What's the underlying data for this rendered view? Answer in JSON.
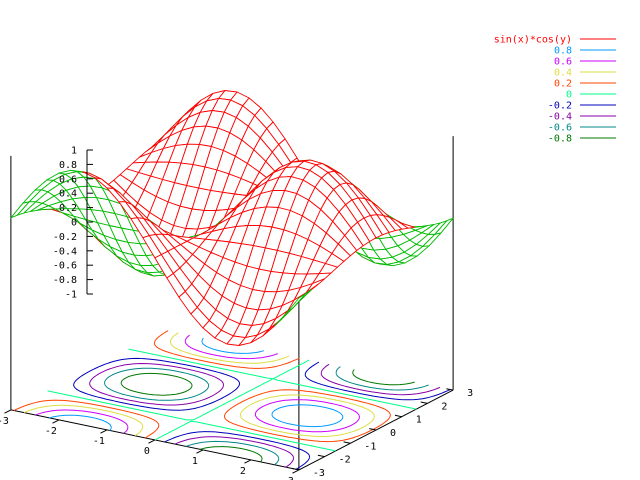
{
  "chart_data": {
    "type": "surface",
    "function": "sin(x)*cos(y)",
    "x_range": [
      -3,
      3
    ],
    "y_range": [
      -3,
      3
    ],
    "z_range": [
      -1,
      1
    ],
    "mesh_samples": 24,
    "surface_colors": {
      "top": "#ff0000",
      "bottom": "#00bb00"
    },
    "z_ticks": [
      "1",
      "0.8",
      "0.6",
      "0.4",
      "0.2",
      "0",
      "-0.2",
      "-0.4",
      "-0.6",
      "-0.8",
      "-1"
    ],
    "x_ticks": [
      "-3",
      "-2",
      "-1",
      "0",
      "1",
      "2",
      "3"
    ],
    "y_ticks": [
      "-3",
      "-2",
      "-1",
      "0",
      "1",
      "2",
      "3"
    ],
    "contour_levels": [
      {
        "label": "0.8",
        "value": 0.8,
        "color": "#0099ff"
      },
      {
        "label": "0.6",
        "value": 0.6,
        "color": "#cc00ff"
      },
      {
        "label": "0.4",
        "value": 0.4,
        "color": "#dddd44"
      },
      {
        "label": "0.2",
        "value": 0.2,
        "color": "#ff4400"
      },
      {
        "label": "0",
        "value": 0.0,
        "color": "#00ff88"
      },
      {
        "label": "-0.2",
        "value": -0.2,
        "color": "#0000bb"
      },
      {
        "label": "-0.4",
        "value": -0.4,
        "color": "#8800aa"
      },
      {
        "label": "-0.6",
        "value": -0.6,
        "color": "#008888"
      },
      {
        "label": "-0.8",
        "value": -0.8,
        "color": "#007700"
      }
    ],
    "legend": {
      "position": "top-right",
      "entries": [
        {
          "label": "sin(x)*cos(y)",
          "color": "#ff0000"
        },
        {
          "label": "0.8",
          "color": "#0099ff"
        },
        {
          "label": "0.6",
          "color": "#cc00ff"
        },
        {
          "label": "0.4",
          "color": "#dddd44"
        },
        {
          "label": "0.2",
          "color": "#ff4400"
        },
        {
          "label": "0",
          "color": "#00ff88"
        },
        {
          "label": "-0.2",
          "color": "#0000bb"
        },
        {
          "label": "-0.4",
          "color": "#8800aa"
        },
        {
          "label": "-0.6",
          "color": "#008888"
        },
        {
          "label": "-0.8",
          "color": "#007700"
        }
      ]
    }
  }
}
